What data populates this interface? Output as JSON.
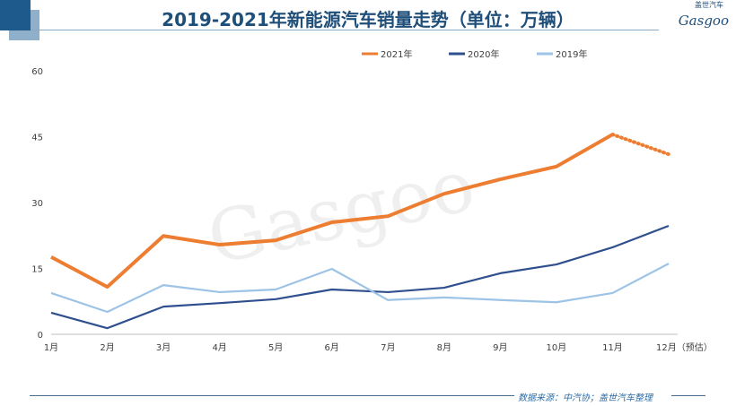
{
  "header": {
    "title": "2019-2021年新能源汽车销量走势（单位：万辆）",
    "logo_text": "Gasgoo",
    "logo_cn": "盖世汽车"
  },
  "footer": {
    "source": "数据来源：中汽协；盖世汽车整理"
  },
  "watermark": "Gasgoo",
  "chart_data": {
    "type": "line",
    "categories": [
      "1月",
      "2月",
      "3月",
      "4月",
      "5月",
      "6月",
      "7月",
      "8月",
      "9月",
      "10月",
      "11月",
      "12月（预估）"
    ],
    "ylim": [
      0,
      60
    ],
    "yticks": [
      0,
      15,
      30,
      45,
      60
    ],
    "grid": false,
    "legend": "top",
    "series": [
      {
        "name": "2021年",
        "color": "#ed7d31",
        "values": [
          17.6,
          10.8,
          22.4,
          20.4,
          21.4,
          25.5,
          26.9,
          32.0,
          35.3,
          38.2,
          45.5,
          41.0
        ],
        "dotted_last": true
      },
      {
        "name": "2020年",
        "color": "#2f4f8f",
        "values": [
          4.9,
          1.4,
          6.3,
          7.1,
          8.0,
          10.2,
          9.6,
          10.6,
          13.9,
          15.9,
          19.8,
          24.7
        ]
      },
      {
        "name": "2019年",
        "color": "#9dc3e6",
        "values": [
          9.4,
          5.1,
          11.2,
          9.6,
          10.2,
          14.9,
          7.8,
          8.4,
          7.8,
          7.3,
          9.4,
          16.1
        ]
      }
    ]
  }
}
